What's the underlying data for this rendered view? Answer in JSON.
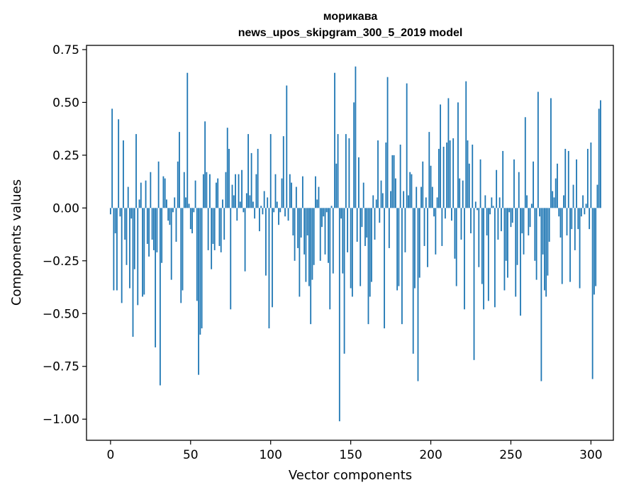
{
  "chart_data": {
    "type": "bar",
    "title_line1": "морикава",
    "title_line2": "news_upos_skipgram_300_5_2019 model",
    "xlabel": "Vector components",
    "ylabel": "Components values",
    "xlim": [
      -15,
      314
    ],
    "ylim": [
      -1.1,
      0.77
    ],
    "xticks": [
      0,
      50,
      100,
      150,
      200,
      250,
      300
    ],
    "xtick_labels": [
      "0",
      "50",
      "100",
      "150",
      "200",
      "250",
      "300"
    ],
    "yticks": [
      0.75,
      0.5,
      0.25,
      0.0,
      -0.25,
      -0.5,
      -0.75,
      -1.0
    ],
    "ytick_labels": [
      "0.75",
      "0.50",
      "0.25",
      "0.00",
      "−0.25",
      "−0.50",
      "−0.75",
      "−1.00"
    ],
    "bar_color": "#1f77b4",
    "values": [
      -0.03,
      0.47,
      -0.39,
      -0.12,
      -0.39,
      0.42,
      -0.04,
      -0.45,
      0.32,
      -0.15,
      -0.27,
      0.1,
      -0.38,
      -0.05,
      -0.61,
      -0.29,
      0.35,
      -0.46,
      0.04,
      0.12,
      -0.42,
      -0.41,
      0.13,
      -0.17,
      -0.23,
      0.17,
      -0.15,
      -0.2,
      -0.66,
      -0.21,
      0.22,
      -0.84,
      -0.26,
      0.15,
      0.14,
      0.04,
      -0.06,
      -0.08,
      -0.34,
      -0.02,
      0.05,
      -0.16,
      0.22,
      0.36,
      -0.45,
      -0.39,
      0.17,
      0.05,
      0.64,
      0.02,
      -0.1,
      -0.12,
      -0.02,
      0.13,
      -0.44,
      -0.79,
      -0.6,
      -0.57,
      0.16,
      0.41,
      0.17,
      -0.2,
      0.16,
      -0.29,
      -0.17,
      -0.2,
      0.12,
      0.14,
      -0.18,
      -0.21,
      0.04,
      -0.15,
      0.17,
      0.38,
      0.28,
      -0.48,
      0.11,
      0.06,
      0.16,
      -0.06,
      0.16,
      0.03,
      0.18,
      -0.02,
      -0.3,
      0.07,
      0.35,
      0.06,
      0.26,
      0.03,
      -0.05,
      0.16,
      0.28,
      -0.11,
      0.01,
      -0.03,
      0.08,
      -0.32,
      0.05,
      -0.57,
      0.35,
      -0.47,
      -0.02,
      0.16,
      0.03,
      -0.08,
      -0.02,
      0.14,
      0.34,
      -0.04,
      0.58,
      -0.06,
      0.16,
      0.12,
      -0.13,
      -0.25,
      0.1,
      -0.19,
      -0.42,
      -0.14,
      0.15,
      -0.22,
      -0.35,
      -0.13,
      -0.37,
      -0.55,
      -0.34,
      -0.27,
      0.15,
      0.04,
      0.1,
      -0.25,
      -0.09,
      -0.04,
      -0.22,
      -0.02,
      -0.26,
      -0.48,
      0.01,
      -0.31,
      0.64,
      0.21,
      0.35,
      -1.01,
      -0.05,
      -0.31,
      -0.69,
      0.35,
      -0.21,
      0.33,
      -0.38,
      -0.42,
      0.5,
      0.67,
      -0.16,
      0.24,
      -0.37,
      -0.09,
      0.12,
      -0.18,
      -0.14,
      -0.55,
      -0.42,
      -0.35,
      0.06,
      -0.15,
      0.04,
      0.32,
      -0.07,
      0.13,
      0.07,
      -0.57,
      0.31,
      0.62,
      -0.19,
      0.08,
      0.25,
      0.25,
      0.14,
      -0.39,
      -0.37,
      0.3,
      -0.55,
      0.08,
      -0.21,
      0.59,
      0.06,
      0.17,
      0.16,
      -0.69,
      -0.38,
      0.1,
      -0.82,
      -0.33,
      0.1,
      0.22,
      -0.18,
      0.05,
      -0.28,
      0.36,
      0.2,
      0.1,
      -0.04,
      -0.22,
      0.05,
      0.28,
      0.49,
      -0.18,
      0.29,
      -0.05,
      0.31,
      0.52,
      0.32,
      -0.06,
      0.33,
      -0.24,
      -0.37,
      0.5,
      0.14,
      -0.15,
      0.13,
      -0.48,
      0.6,
      0.32,
      0.21,
      -0.12,
      0.3,
      -0.72,
      0.03,
      -0.01,
      -0.28,
      0.23,
      -0.36,
      -0.48,
      0.06,
      -0.13,
      -0.44,
      -0.03,
      0.05,
      0.01,
      -0.47,
      0.18,
      -0.15,
      0.05,
      -0.11,
      0.27,
      -0.39,
      -0.25,
      -0.33,
      -0.02,
      -0.09,
      -0.07,
      0.23,
      -0.42,
      -0.27,
      0.17,
      -0.51,
      -0.12,
      -0.22,
      0.43,
      0.06,
      -0.13,
      -0.09,
      0.02,
      0.22,
      -0.25,
      -0.34,
      0.55,
      -0.04,
      -0.82,
      -0.22,
      -0.39,
      -0.42,
      -0.32,
      -0.16,
      0.52,
      0.08,
      0.05,
      0.14,
      0.21,
      -0.04,
      -0.14,
      -0.36,
      0.06,
      0.28,
      -0.13,
      0.27,
      -0.35,
      -0.1,
      0.11,
      -0.2,
      0.23,
      -0.1,
      -0.38,
      -0.04,
      0.06,
      -0.03,
      0.02,
      0.28,
      -0.1,
      0.31,
      -0.81,
      -0.41,
      -0.37,
      0.11,
      0.47,
      0.51
    ]
  }
}
